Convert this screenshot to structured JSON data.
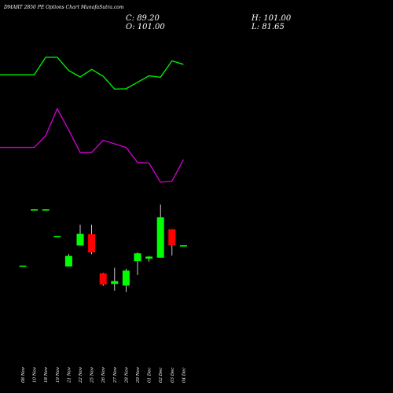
{
  "header": {
    "title": "DMART 2850  PE Options  Chart MunafaSutra.com",
    "close": "C: 89.20",
    "open": "O: 101.00",
    "high": "H: 101.00",
    "low": "L: 81.65"
  },
  "chart_data": {
    "type": "candlestick",
    "categories": [
      "08 Nov",
      "10 Nov",
      "18 Nov",
      "19 Nov",
      "21 Nov",
      "22 Nov",
      "25 Nov",
      "26 Nov",
      "27 Nov",
      "28 Nov",
      "29 Nov",
      "01 Dec",
      "02 Dec",
      "03 Dec",
      "04 Dec"
    ],
    "candles": [
      {
        "x": "08 Nov",
        "open": 74.1,
        "high": 74.3,
        "low": 73.9,
        "close": 74.3
      },
      {
        "x": "10 Nov",
        "open": 115.4,
        "high": 115.6,
        "low": 115.2,
        "close": 115.6
      },
      {
        "x": "18 Nov",
        "open": 115.4,
        "high": 115.6,
        "low": 115.2,
        "close": 115.6
      },
      {
        "x": "19 Nov",
        "open": 95.9,
        "high": 96.1,
        "low": 95.7,
        "close": 96.1
      },
      {
        "x": "21 Nov",
        "open": 73.6,
        "high": 82.8,
        "low": 73.6,
        "close": 81.4
      },
      {
        "x": "22 Nov",
        "open": 89.0,
        "high": 104.3,
        "low": 89.0,
        "close": 97.6
      },
      {
        "x": "25 Nov",
        "open": 97.3,
        "high": 104.3,
        "low": 82.7,
        "close": 84.0
      },
      {
        "x": "26 Nov",
        "open": 68.6,
        "high": 69.0,
        "low": 59.4,
        "close": 60.5
      },
      {
        "x": "27 Nov",
        "open": 60.8,
        "high": 72.7,
        "low": 55.9,
        "close": 62.9
      },
      {
        "x": "28 Nov",
        "open": 59.6,
        "high": 71.9,
        "low": 55.0,
        "close": 70.6
      },
      {
        "x": "29 Nov",
        "open": 77.6,
        "high": 84.0,
        "low": 67.3,
        "close": 83.3
      },
      {
        "x": "01 Dec",
        "open": 79.4,
        "high": 81.4,
        "low": 77.2,
        "close": 80.9
      },
      {
        "x": "02 Dec",
        "open": 80.1,
        "high": 119.1,
        "low": 80.1,
        "close": 109.8
      },
      {
        "x": "03 Dec",
        "open": 101.0,
        "high": 101.0,
        "low": 81.65,
        "close": 89.2
      },
      {
        "x": "04 Dec",
        "open": 89.2,
        "high": 89.2,
        "low": 89.2,
        "close": 89.2
      }
    ],
    "indicator_lines": [
      {
        "color": "#00ee00",
        "values": [
          82.9,
          82.9,
          87.8,
          87.8,
          84.1,
          82.3,
          84.4,
          82.5,
          78.9,
          79.0,
          80.8,
          82.6,
          82.2,
          86.8,
          85.8
        ]
      },
      {
        "color": "#cc00cc",
        "values": [
          62.6,
          62.6,
          65.9,
          73.4,
          67.5,
          61.2,
          61.2,
          64.6,
          63.6,
          62.6,
          58.4,
          58.2,
          52.9,
          53.2,
          59.2
        ]
      }
    ],
    "colors": {
      "up": "#00ff00",
      "down": "#ff0000",
      "wick": "#ffffff",
      "text": "#ffffff",
      "background": "#000000"
    },
    "grid": false
  }
}
